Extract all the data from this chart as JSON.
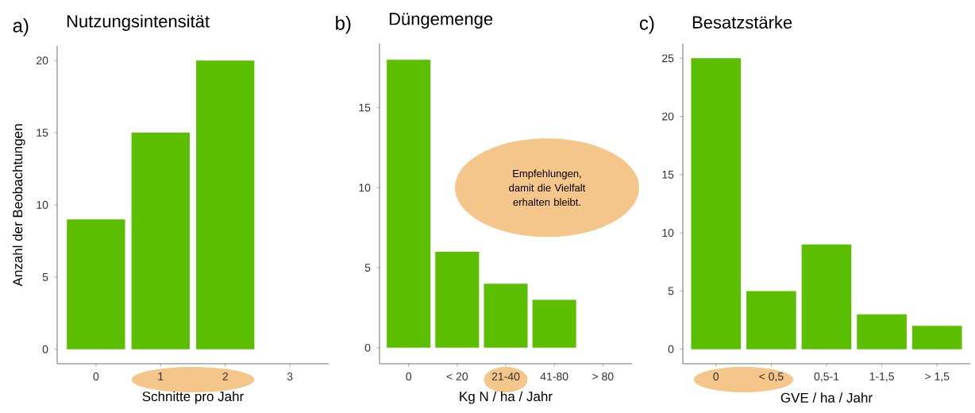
{
  "chart_data": [
    {
      "type": "bar",
      "title": "Nutzungsintensität",
      "annotations": [
        "a)"
      ],
      "xlabel": "Schnitte pro Jahr",
      "ylabel": "Anzahl der Beobachtungen",
      "categories": [
        "0",
        "1",
        "2",
        "3"
      ],
      "values": [
        9,
        15,
        20,
        null
      ],
      "color": "#5bbf00",
      "ylim": [
        -1,
        21
      ],
      "yticks": [
        0,
        5,
        10,
        15,
        20
      ],
      "grid": false
    },
    {
      "type": "bar",
      "title": "Düngemenge",
      "annotations": [
        "b)",
        "Empfehlungen, damit die Vielfalt erhalten bleibt."
      ],
      "xlabel": "Kg N / ha / Jahr",
      "categories": [
        "0",
        "< 20",
        "21-40",
        "41-80",
        "> 80"
      ],
      "values": [
        18,
        6,
        4,
        3,
        null
      ],
      "color": "#5bbf00",
      "ylim": [
        -1,
        19
      ],
      "yticks": [
        0,
        5,
        10,
        15
      ],
      "grid": false
    },
    {
      "type": "bar",
      "title": "Besatzstärke",
      "annotations": [
        "c)"
      ],
      "xlabel": "GVE / ha / Jahr",
      "categories": [
        "0",
        "< 0,5",
        "0,5-1",
        "1-1,5",
        "> 1,5"
      ],
      "values": [
        25,
        5,
        9,
        3,
        2
      ],
      "color": "#5bbf00",
      "ylim": [
        -1.25,
        26.25
      ],
      "yticks": [
        0,
        5,
        10,
        15,
        20,
        25
      ],
      "grid": false
    }
  ]
}
